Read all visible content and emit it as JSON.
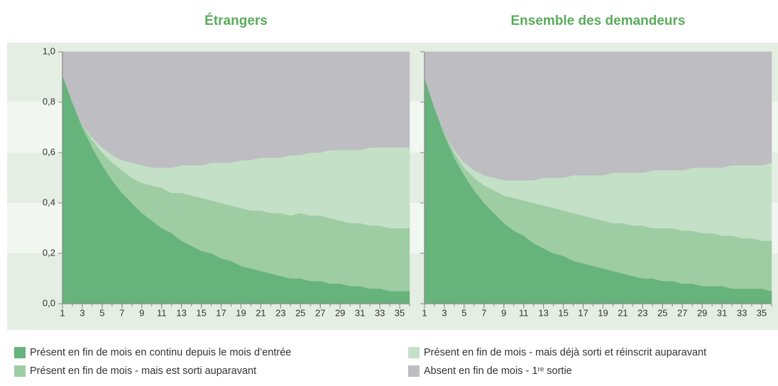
{
  "chart_data": [
    {
      "type": "stacked_area",
      "title": "Étrangers",
      "x": [
        1,
        2,
        3,
        4,
        5,
        6,
        7,
        8,
        9,
        10,
        11,
        12,
        13,
        14,
        15,
        16,
        17,
        18,
        19,
        20,
        21,
        22,
        23,
        24,
        25,
        26,
        27,
        28,
        29,
        30,
        31,
        32,
        33,
        34,
        35,
        36
      ],
      "xlim": [
        1,
        36
      ],
      "xticks": [
        1,
        3,
        5,
        7,
        9,
        11,
        13,
        15,
        17,
        19,
        21,
        23,
        25,
        27,
        29,
        31,
        33,
        35
      ],
      "ylim": [
        0,
        1
      ],
      "yticks": [
        {
          "value": 0,
          "label": "0,0"
        },
        {
          "value": 0.2,
          "label": "0,2"
        },
        {
          "value": 0.4,
          "label": "0,4"
        },
        {
          "value": 0.6,
          "label": "0,6"
        },
        {
          "value": 0.8,
          "label": "0,8"
        },
        {
          "value": 1,
          "label": "1,0"
        }
      ],
      "series": [
        {
          "name": "Présent en fin de mois en continu depuis le mois d’entrée",
          "color": "#67b37c",
          "values": [
            0.91,
            0.8,
            0.7,
            0.62,
            0.55,
            0.49,
            0.44,
            0.4,
            0.36,
            0.33,
            0.3,
            0.28,
            0.25,
            0.23,
            0.21,
            0.2,
            0.18,
            0.17,
            0.15,
            0.14,
            0.13,
            0.12,
            0.11,
            0.1,
            0.1,
            0.09,
            0.09,
            0.08,
            0.08,
            0.07,
            0.07,
            0.06,
            0.06,
            0.05,
            0.05,
            0.05
          ]
        },
        {
          "name": "Présent en fin de mois - mais est sorti auparavant",
          "color": "#9ecda4",
          "values": [
            0,
            0,
            0.01,
            0.03,
            0.05,
            0.07,
            0.09,
            0.1,
            0.12,
            0.14,
            0.16,
            0.16,
            0.19,
            0.2,
            0.21,
            0.21,
            0.22,
            0.22,
            0.23,
            0.23,
            0.24,
            0.24,
            0.25,
            0.25,
            0.26,
            0.26,
            0.26,
            0.26,
            0.25,
            0.25,
            0.25,
            0.25,
            0.25,
            0.25,
            0.25,
            0.25
          ]
        },
        {
          "name": "Présent en fin de mois - mais déjà sorti et réinscrit auparavant",
          "color": "#c4e0c6",
          "values": [
            0,
            0,
            0,
            0.01,
            0.02,
            0.03,
            0.04,
            0.06,
            0.07,
            0.07,
            0.08,
            0.1,
            0.11,
            0.12,
            0.13,
            0.15,
            0.16,
            0.17,
            0.19,
            0.2,
            0.21,
            0.22,
            0.22,
            0.24,
            0.23,
            0.25,
            0.25,
            0.27,
            0.28,
            0.29,
            0.29,
            0.31,
            0.31,
            0.32,
            0.32,
            0.32
          ]
        },
        {
          "name": "Absent en fin de mois - 1ʳᵉ sortie",
          "color": "#bdbdc2",
          "values": [
            0.09,
            0.2,
            0.29,
            0.34,
            0.38,
            0.41,
            0.43,
            0.44,
            0.45,
            0.46,
            0.46,
            0.46,
            0.45,
            0.45,
            0.45,
            0.44,
            0.44,
            0.44,
            0.43,
            0.43,
            0.42,
            0.42,
            0.42,
            0.41,
            0.41,
            0.4,
            0.4,
            0.39,
            0.39,
            0.39,
            0.39,
            0.38,
            0.38,
            0.38,
            0.38,
            0.38
          ]
        }
      ]
    },
    {
      "type": "stacked_area",
      "title": "Ensemble des demandeurs",
      "x": [
        1,
        2,
        3,
        4,
        5,
        6,
        7,
        8,
        9,
        10,
        11,
        12,
        13,
        14,
        15,
        16,
        17,
        18,
        19,
        20,
        21,
        22,
        23,
        24,
        25,
        26,
        27,
        28,
        29,
        30,
        31,
        32,
        33,
        34,
        35,
        36
      ],
      "xlim": [
        1,
        36
      ],
      "xticks": [
        1,
        3,
        5,
        7,
        9,
        11,
        13,
        15,
        17,
        19,
        21,
        23,
        25,
        27,
        29,
        31,
        33,
        35
      ],
      "ylim": [
        0,
        1
      ],
      "yticks": [
        0,
        0.2,
        0.4,
        0.6,
        0.8,
        1
      ],
      "series": [
        {
          "name": "Présent en fin de mois en continu depuis le mois d’entrée",
          "color": "#67b37c",
          "values": [
            0.9,
            0.78,
            0.67,
            0.58,
            0.51,
            0.45,
            0.4,
            0.36,
            0.32,
            0.29,
            0.27,
            0.24,
            0.22,
            0.2,
            0.19,
            0.17,
            0.16,
            0.15,
            0.14,
            0.13,
            0.12,
            0.11,
            0.1,
            0.1,
            0.09,
            0.09,
            0.08,
            0.08,
            0.07,
            0.07,
            0.07,
            0.06,
            0.06,
            0.06,
            0.06,
            0.05
          ]
        },
        {
          "name": "Présent en fin de mois - mais est sorti auparavant",
          "color": "#9ecda4",
          "values": [
            0,
            0,
            0.01,
            0.02,
            0.03,
            0.05,
            0.07,
            0.09,
            0.11,
            0.13,
            0.14,
            0.16,
            0.17,
            0.18,
            0.18,
            0.19,
            0.19,
            0.19,
            0.19,
            0.19,
            0.2,
            0.2,
            0.21,
            0.2,
            0.21,
            0.21,
            0.21,
            0.21,
            0.21,
            0.21,
            0.2,
            0.21,
            0.2,
            0.2,
            0.19,
            0.2
          ]
        },
        {
          "name": "Présent en fin de mois - mais déjà sorti et réinscrit auparavant",
          "color": "#c4e0c6",
          "values": [
            0,
            0,
            0,
            0.01,
            0.02,
            0.03,
            0.04,
            0.05,
            0.06,
            0.07,
            0.08,
            0.09,
            0.11,
            0.12,
            0.13,
            0.15,
            0.16,
            0.17,
            0.18,
            0.2,
            0.2,
            0.21,
            0.21,
            0.23,
            0.23,
            0.23,
            0.24,
            0.25,
            0.26,
            0.26,
            0.27,
            0.28,
            0.29,
            0.29,
            0.3,
            0.31
          ]
        },
        {
          "name": "Absent en fin de mois - 1ʳᵉ sortie",
          "color": "#bdbdc2",
          "values": [
            0.1,
            0.22,
            0.32,
            0.39,
            0.44,
            0.47,
            0.49,
            0.5,
            0.51,
            0.51,
            0.51,
            0.51,
            0.5,
            0.5,
            0.5,
            0.49,
            0.49,
            0.49,
            0.49,
            0.48,
            0.48,
            0.48,
            0.48,
            0.47,
            0.47,
            0.47,
            0.47,
            0.46,
            0.46,
            0.46,
            0.46,
            0.45,
            0.45,
            0.45,
            0.45,
            0.44
          ]
        }
      ]
    }
  ]
}
